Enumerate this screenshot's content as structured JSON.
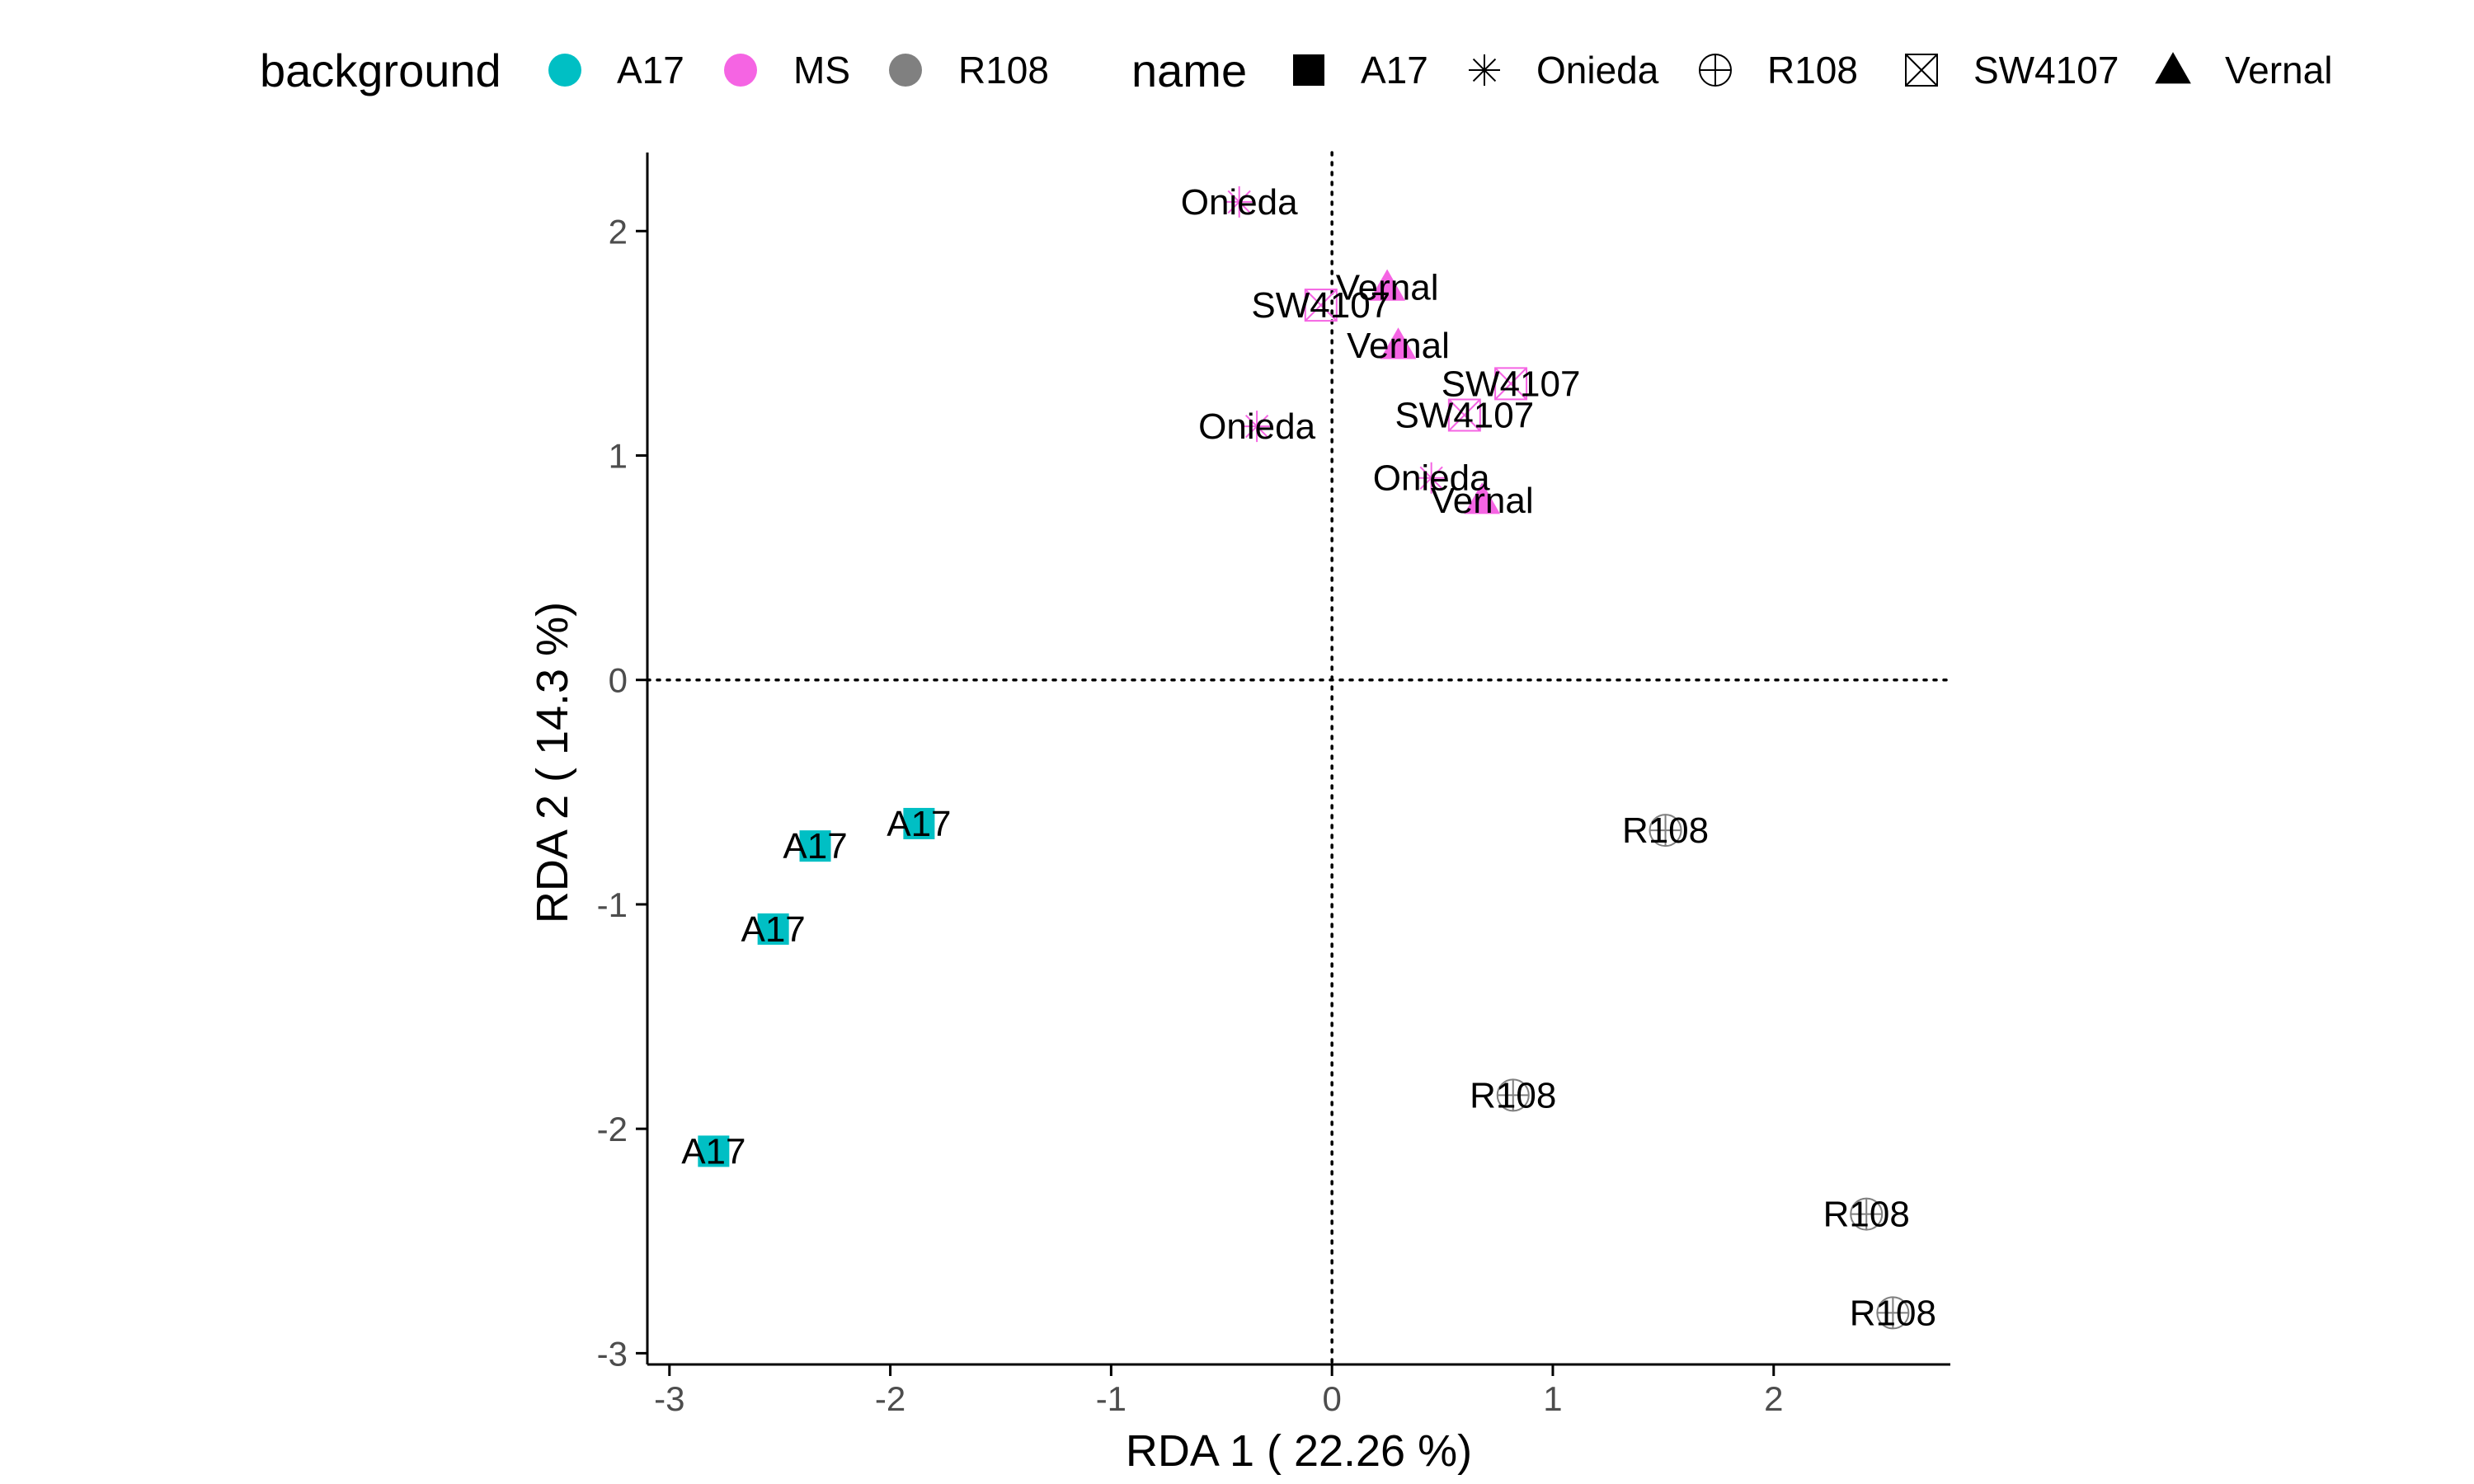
{
  "chart_data": {
    "type": "scatter",
    "xlabel": "RDA 1 ( 22.26 %)",
    "ylabel": "RDA 2 ( 14.3 %)",
    "xlim": [
      -3.1,
      2.8
    ],
    "ylim": [
      -3.05,
      2.35
    ],
    "x_ticks": [
      -3,
      -2,
      -1,
      0,
      1,
      2
    ],
    "y_ticks": [
      -3,
      -2,
      -1,
      0,
      1,
      2
    ],
    "reference_lines": {
      "x": 0,
      "y": 0,
      "style": "dotted"
    },
    "grid": false,
    "legend_placement": "top",
    "legends": [
      {
        "title": "background",
        "aesthetic": "color",
        "entries": [
          {
            "label": "A17",
            "color": "#00BFC4"
          },
          {
            "label": "MS",
            "color": "#F564E3"
          },
          {
            "label": "R108",
            "color": "#808080"
          }
        ]
      },
      {
        "title": "name",
        "aesthetic": "shape",
        "entries": [
          {
            "label": "A17",
            "shape": "square"
          },
          {
            "label": "Onieda",
            "shape": "asterisk"
          },
          {
            "label": "R108",
            "shape": "circle-plus"
          },
          {
            "label": "SW4107",
            "shape": "square-x"
          },
          {
            "label": "Vernal",
            "shape": "triangle"
          }
        ]
      }
    ],
    "points": [
      {
        "label": "Onieda",
        "x": -0.42,
        "y": 2.13,
        "background": "MS",
        "name": "Onieda"
      },
      {
        "label": "Vernal",
        "x": 0.25,
        "y": 1.75,
        "background": "MS",
        "name": "Vernal"
      },
      {
        "label": "SW4107",
        "x": -0.05,
        "y": 1.67,
        "background": "MS",
        "name": "SW4107"
      },
      {
        "label": "Vernal",
        "x": 0.3,
        "y": 1.49,
        "background": "MS",
        "name": "Vernal"
      },
      {
        "label": "SW4107",
        "x": 0.81,
        "y": 1.32,
        "background": "MS",
        "name": "SW4107"
      },
      {
        "label": "SW4107",
        "x": 0.6,
        "y": 1.18,
        "background": "MS",
        "name": "SW4107"
      },
      {
        "label": "Onieda",
        "x": -0.34,
        "y": 1.13,
        "background": "MS",
        "name": "Onieda"
      },
      {
        "label": "Onieda",
        "x": 0.45,
        "y": 0.9,
        "background": "MS",
        "name": "Onieda"
      },
      {
        "label": "Vernal",
        "x": 0.68,
        "y": 0.8,
        "background": "MS",
        "name": "Vernal"
      },
      {
        "label": "A17",
        "x": -1.87,
        "y": -0.64,
        "background": "A17",
        "name": "A17"
      },
      {
        "label": "A17",
        "x": -2.34,
        "y": -0.74,
        "background": "A17",
        "name": "A17"
      },
      {
        "label": "A17",
        "x": -2.53,
        "y": -1.11,
        "background": "A17",
        "name": "A17"
      },
      {
        "label": "A17",
        "x": -2.8,
        "y": -2.1,
        "background": "A17",
        "name": "A17"
      },
      {
        "label": "R108",
        "x": 1.51,
        "y": -0.67,
        "background": "R108",
        "name": "R108"
      },
      {
        "label": "R108",
        "x": 0.82,
        "y": -1.85,
        "background": "R108",
        "name": "R108"
      },
      {
        "label": "R108",
        "x": 2.42,
        "y": -2.38,
        "background": "R108",
        "name": "R108"
      },
      {
        "label": "R108",
        "x": 2.54,
        "y": -2.82,
        "background": "R108",
        "name": "R108"
      }
    ]
  }
}
